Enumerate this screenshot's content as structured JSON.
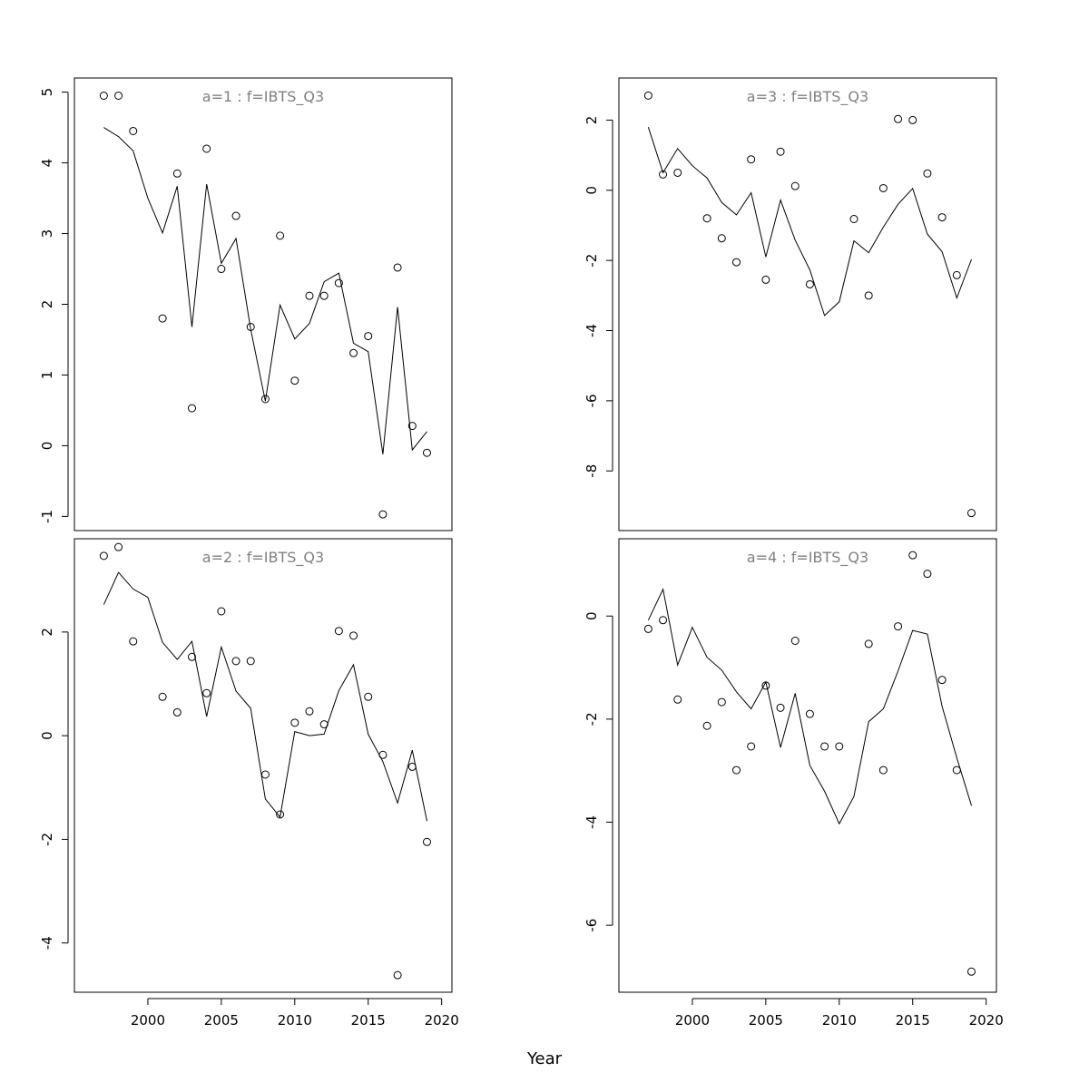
{
  "chart_data": {
    "type": "scatter",
    "xlabel": "Year",
    "x_axis": {
      "range": [
        1995,
        2020.7
      ],
      "ticks": [
        2000,
        2005,
        2010,
        2015,
        2020
      ]
    },
    "legend": "none",
    "grid": false,
    "colors": {
      "points": "#000000",
      "line": "#000000",
      "panel_title": "#808080"
    },
    "panels": [
      {
        "title": "a=1  :  f=IBTS_Q3",
        "ylim": [
          -1.2,
          5.2
        ],
        "yticks": [
          -1,
          0,
          1,
          2,
          3,
          4,
          5
        ],
        "observed": [
          {
            "x": 1997,
            "y": 4.95
          },
          {
            "x": 1998,
            "y": 4.95
          },
          {
            "x": 1999,
            "y": 4.45
          },
          {
            "x": 2001,
            "y": 1.8
          },
          {
            "x": 2002,
            "y": 3.85
          },
          {
            "x": 2003,
            "y": 0.53
          },
          {
            "x": 2004,
            "y": 4.2
          },
          {
            "x": 2005,
            "y": 2.5
          },
          {
            "x": 2006,
            "y": 3.25
          },
          {
            "x": 2007,
            "y": 1.68
          },
          {
            "x": 2008,
            "y": 0.66
          },
          {
            "x": 2009,
            "y": 2.97
          },
          {
            "x": 2010,
            "y": 0.92
          },
          {
            "x": 2011,
            "y": 2.12
          },
          {
            "x": 2012,
            "y": 2.12
          },
          {
            "x": 2013,
            "y": 2.3
          },
          {
            "x": 2014,
            "y": 1.31
          },
          {
            "x": 2015,
            "y": 1.55
          },
          {
            "x": 2016,
            "y": -0.97
          },
          {
            "x": 2017,
            "y": 2.52
          },
          {
            "x": 2018,
            "y": 0.28
          },
          {
            "x": 2019,
            "y": -0.1
          }
        ],
        "fitted": [
          {
            "x": 1997,
            "y": 4.5
          },
          {
            "x": 1998,
            "y": 4.37
          },
          {
            "x": 1999,
            "y": 4.17
          },
          {
            "x": 2000,
            "y": 3.5
          },
          {
            "x": 2001,
            "y": 3.01
          },
          {
            "x": 2002,
            "y": 3.67
          },
          {
            "x": 2003,
            "y": 1.68
          },
          {
            "x": 2004,
            "y": 3.7
          },
          {
            "x": 2005,
            "y": 2.58
          },
          {
            "x": 2006,
            "y": 2.93
          },
          {
            "x": 2007,
            "y": 1.65
          },
          {
            "x": 2008,
            "y": 0.63
          },
          {
            "x": 2009,
            "y": 1.99
          },
          {
            "x": 2010,
            "y": 1.51
          },
          {
            "x": 2011,
            "y": 1.73
          },
          {
            "x": 2012,
            "y": 2.32
          },
          {
            "x": 2013,
            "y": 2.44
          },
          {
            "x": 2014,
            "y": 1.45
          },
          {
            "x": 2015,
            "y": 1.33
          },
          {
            "x": 2016,
            "y": -0.12
          },
          {
            "x": 2017,
            "y": 1.96
          },
          {
            "x": 2018,
            "y": -0.06
          },
          {
            "x": 2019,
            "y": 0.2
          }
        ]
      },
      {
        "title": "a=3  :  f=IBTS_Q3",
        "ylim": [
          -9.7,
          3.2
        ],
        "yticks": [
          -8,
          -6,
          -4,
          -2,
          0,
          2
        ],
        "observed": [
          {
            "x": 1997,
            "y": 2.7
          },
          {
            "x": 1998,
            "y": 0.45
          },
          {
            "x": 1999,
            "y": 0.5
          },
          {
            "x": 2001,
            "y": -0.8
          },
          {
            "x": 2002,
            "y": -1.37
          },
          {
            "x": 2003,
            "y": -2.05
          },
          {
            "x": 2004,
            "y": 0.88
          },
          {
            "x": 2005,
            "y": -2.55
          },
          {
            "x": 2006,
            "y": 1.1
          },
          {
            "x": 2007,
            "y": 0.12
          },
          {
            "x": 2008,
            "y": -2.68
          },
          {
            "x": 2011,
            "y": -0.82
          },
          {
            "x": 2012,
            "y": -3.0
          },
          {
            "x": 2013,
            "y": 0.06
          },
          {
            "x": 2014,
            "y": 2.03
          },
          {
            "x": 2015,
            "y": 2.0
          },
          {
            "x": 2016,
            "y": 0.48
          },
          {
            "x": 2017,
            "y": -0.77
          },
          {
            "x": 2018,
            "y": -2.42
          },
          {
            "x": 2019,
            "y": -9.2
          }
        ],
        "fitted": [
          {
            "x": 1997,
            "y": 1.8
          },
          {
            "x": 1998,
            "y": 0.5
          },
          {
            "x": 1999,
            "y": 1.19
          },
          {
            "x": 2000,
            "y": 0.7
          },
          {
            "x": 2001,
            "y": 0.35
          },
          {
            "x": 2002,
            "y": -0.35
          },
          {
            "x": 2003,
            "y": -0.7
          },
          {
            "x": 2004,
            "y": -0.07
          },
          {
            "x": 2005,
            "y": -1.9
          },
          {
            "x": 2006,
            "y": -0.28
          },
          {
            "x": 2007,
            "y": -1.42
          },
          {
            "x": 2008,
            "y": -2.27
          },
          {
            "x": 2009,
            "y": -3.57
          },
          {
            "x": 2010,
            "y": -3.18
          },
          {
            "x": 2011,
            "y": -1.44
          },
          {
            "x": 2012,
            "y": -1.78
          },
          {
            "x": 2013,
            "y": -1.05
          },
          {
            "x": 2014,
            "y": -0.4
          },
          {
            "x": 2015,
            "y": 0.05
          },
          {
            "x": 2016,
            "y": -1.25
          },
          {
            "x": 2017,
            "y": -1.75
          },
          {
            "x": 2018,
            "y": -3.07
          },
          {
            "x": 2019,
            "y": -1.97
          }
        ]
      },
      {
        "title": "a=2  :  f=IBTS_Q3",
        "ylim": [
          -4.95,
          3.8
        ],
        "yticks": [
          -4,
          -2,
          0,
          2
        ],
        "observed": [
          {
            "x": 1997,
            "y": 3.47
          },
          {
            "x": 1998,
            "y": 3.64
          },
          {
            "x": 1999,
            "y": 1.82
          },
          {
            "x": 2001,
            "y": 0.75
          },
          {
            "x": 2002,
            "y": 0.45
          },
          {
            "x": 2003,
            "y": 1.52
          },
          {
            "x": 2004,
            "y": 0.82
          },
          {
            "x": 2005,
            "y": 2.4
          },
          {
            "x": 2006,
            "y": 1.44
          },
          {
            "x": 2007,
            "y": 1.44
          },
          {
            "x": 2008,
            "y": -0.75
          },
          {
            "x": 2009,
            "y": -1.52
          },
          {
            "x": 2010,
            "y": 0.25
          },
          {
            "x": 2011,
            "y": 0.47
          },
          {
            "x": 2012,
            "y": 0.22
          },
          {
            "x": 2013,
            "y": 2.02
          },
          {
            "x": 2014,
            "y": 1.93
          },
          {
            "x": 2015,
            "y": 0.75
          },
          {
            "x": 2016,
            "y": -0.37
          },
          {
            "x": 2017,
            "y": -4.62
          },
          {
            "x": 2018,
            "y": -0.6
          },
          {
            "x": 2019,
            "y": -2.05
          }
        ],
        "fitted": [
          {
            "x": 1997,
            "y": 2.53
          },
          {
            "x": 1998,
            "y": 3.15
          },
          {
            "x": 1999,
            "y": 2.83
          },
          {
            "x": 2000,
            "y": 2.67
          },
          {
            "x": 2001,
            "y": 1.8
          },
          {
            "x": 2002,
            "y": 1.47
          },
          {
            "x": 2003,
            "y": 1.82
          },
          {
            "x": 2004,
            "y": 0.37
          },
          {
            "x": 2005,
            "y": 1.71
          },
          {
            "x": 2006,
            "y": 0.86
          },
          {
            "x": 2007,
            "y": 0.53
          },
          {
            "x": 2008,
            "y": -1.22
          },
          {
            "x": 2009,
            "y": -1.57
          },
          {
            "x": 2010,
            "y": 0.08
          },
          {
            "x": 2011,
            "y": 0.0
          },
          {
            "x": 2012,
            "y": 0.03
          },
          {
            "x": 2013,
            "y": 0.87
          },
          {
            "x": 2014,
            "y": 1.37
          },
          {
            "x": 2015,
            "y": 0.03
          },
          {
            "x": 2016,
            "y": -0.5
          },
          {
            "x": 2017,
            "y": -1.3
          },
          {
            "x": 2018,
            "y": -0.28
          },
          {
            "x": 2019,
            "y": -1.65
          }
        ]
      },
      {
        "title": "a=4  :  f=IBTS_Q3",
        "ylim": [
          -7.3,
          1.5
        ],
        "yticks": [
          -6,
          -4,
          -2,
          0
        ],
        "observed": [
          {
            "x": 1997,
            "y": -0.25
          },
          {
            "x": 1998,
            "y": -0.08
          },
          {
            "x": 1999,
            "y": -1.62
          },
          {
            "x": 2001,
            "y": -2.13
          },
          {
            "x": 2002,
            "y": -1.67
          },
          {
            "x": 2003,
            "y": -2.99
          },
          {
            "x": 2004,
            "y": -2.53
          },
          {
            "x": 2005,
            "y": -1.35
          },
          {
            "x": 2006,
            "y": -1.78
          },
          {
            "x": 2007,
            "y": -0.48
          },
          {
            "x": 2008,
            "y": -1.9
          },
          {
            "x": 2009,
            "y": -2.53
          },
          {
            "x": 2010,
            "y": -2.53
          },
          {
            "x": 2012,
            "y": -0.54
          },
          {
            "x": 2013,
            "y": -2.99
          },
          {
            "x": 2014,
            "y": -0.2
          },
          {
            "x": 2015,
            "y": 1.18
          },
          {
            "x": 2016,
            "y": 0.82
          },
          {
            "x": 2017,
            "y": -1.24
          },
          {
            "x": 2018,
            "y": -2.99
          },
          {
            "x": 2019,
            "y": -6.9
          }
        ],
        "fitted": [
          {
            "x": 1997,
            "y": -0.08
          },
          {
            "x": 1998,
            "y": 0.52
          },
          {
            "x": 1999,
            "y": -0.95
          },
          {
            "x": 2000,
            "y": -0.22
          },
          {
            "x": 2001,
            "y": -0.8
          },
          {
            "x": 2002,
            "y": -1.05
          },
          {
            "x": 2003,
            "y": -1.47
          },
          {
            "x": 2004,
            "y": -1.8
          },
          {
            "x": 2005,
            "y": -1.28
          },
          {
            "x": 2006,
            "y": -2.55
          },
          {
            "x": 2007,
            "y": -1.5
          },
          {
            "x": 2008,
            "y": -2.9
          },
          {
            "x": 2009,
            "y": -3.4
          },
          {
            "x": 2010,
            "y": -4.03
          },
          {
            "x": 2011,
            "y": -3.5
          },
          {
            "x": 2012,
            "y": -2.05
          },
          {
            "x": 2013,
            "y": -1.8
          },
          {
            "x": 2014,
            "y": -1.07
          },
          {
            "x": 2015,
            "y": -0.28
          },
          {
            "x": 2016,
            "y": -0.35
          },
          {
            "x": 2017,
            "y": -1.75
          },
          {
            "x": 2018,
            "y": -2.75
          },
          {
            "x": 2019,
            "y": -3.68
          }
        ]
      }
    ]
  }
}
